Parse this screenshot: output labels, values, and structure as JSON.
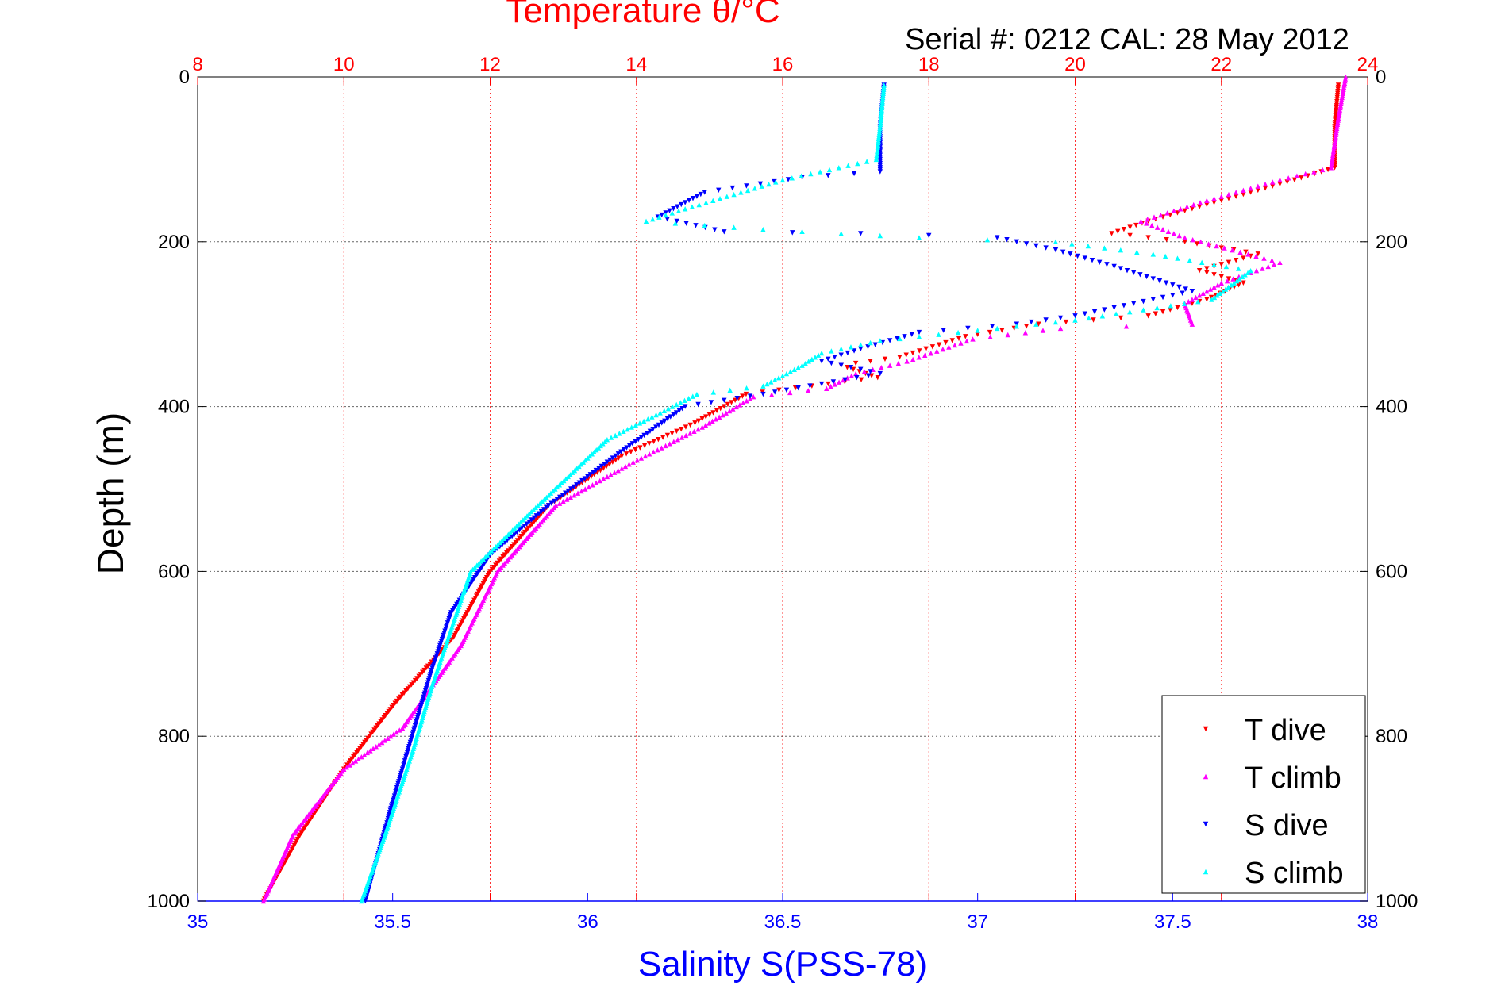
{
  "chart_data": {
    "type": "scatter",
    "title": "Temperature θ/°C",
    "subtitle": "Serial #: 0212  CAL: 28 May 2012",
    "ylabel": "Depth (m)",
    "xlabel_bottom": "Salinity S(PSS-78)",
    "ylim": [
      0,
      1000
    ],
    "y_reversed": true,
    "y_ticks": [
      "0",
      "200",
      "400",
      "600",
      "800",
      "1000"
    ],
    "temperature_axis": {
      "range": [
        8,
        24
      ],
      "ticks": [
        "8",
        "10",
        "12",
        "14",
        "16",
        "18",
        "20",
        "22",
        "24"
      ],
      "color": "#ff0000"
    },
    "salinity_axis": {
      "range": [
        35,
        38
      ],
      "ticks": [
        "35",
        "35.5",
        "36",
        "36.5",
        "37",
        "37.5",
        "38"
      ],
      "color": "#0000ff"
    },
    "grid": true,
    "legend_position": "bottom-right",
    "series": [
      {
        "name": "T dive",
        "axis": "temperature",
        "marker": "down-triangle",
        "color": "#ff0000",
        "points": [
          [
            23.6,
            10
          ],
          [
            23.55,
            60
          ],
          [
            23.55,
            110
          ],
          [
            23.0,
            125
          ],
          [
            22.0,
            150
          ],
          [
            21.0,
            175
          ],
          [
            20.5,
            190
          ],
          [
            21.5,
            200
          ],
          [
            22.5,
            215
          ],
          [
            21.7,
            235
          ],
          [
            22.3,
            250
          ],
          [
            21.8,
            270
          ],
          [
            21.0,
            290
          ],
          [
            19.5,
            300
          ],
          [
            18.5,
            315
          ],
          [
            17.6,
            340
          ],
          [
            16.8,
            350
          ],
          [
            17.3,
            365
          ],
          [
            15.5,
            385
          ],
          [
            14.8,
            420
          ],
          [
            13.8,
            460
          ],
          [
            12.8,
            520
          ],
          [
            12.0,
            600
          ],
          [
            11.5,
            680
          ],
          [
            10.7,
            760
          ],
          [
            10.0,
            840
          ],
          [
            9.4,
            920
          ],
          [
            8.9,
            1000
          ]
        ]
      },
      {
        "name": "T climb",
        "axis": "temperature",
        "marker": "up-triangle",
        "color": "#ff00ff",
        "points": [
          [
            23.7,
            0
          ],
          [
            23.6,
            50
          ],
          [
            23.5,
            110
          ],
          [
            22.8,
            125
          ],
          [
            21.8,
            150
          ],
          [
            20.9,
            175
          ],
          [
            21.5,
            195
          ],
          [
            22.8,
            225
          ],
          [
            22.0,
            250
          ],
          [
            21.5,
            275
          ],
          [
            21.6,
            300
          ],
          [
            19.8,
            305
          ],
          [
            18.6,
            318
          ],
          [
            17.7,
            345
          ],
          [
            17.0,
            360
          ],
          [
            16.6,
            378
          ],
          [
            15.6,
            388
          ],
          [
            14.9,
            425
          ],
          [
            13.9,
            470
          ],
          [
            12.9,
            520
          ],
          [
            12.1,
            600
          ],
          [
            11.6,
            690
          ],
          [
            10.8,
            790
          ],
          [
            10.0,
            840
          ],
          [
            9.3,
            920
          ],
          [
            8.9,
            1000
          ]
        ]
      },
      {
        "name": "S dive",
        "axis": "salinity",
        "marker": "down-triangle",
        "color": "#0000ff",
        "points": [
          [
            36.76,
            10
          ],
          [
            36.75,
            60
          ],
          [
            36.75,
            115
          ],
          [
            36.55,
            122
          ],
          [
            36.3,
            140
          ],
          [
            36.18,
            170
          ],
          [
            36.35,
            188
          ],
          [
            36.7,
            190
          ],
          [
            37.05,
            195
          ],
          [
            37.2,
            210
          ],
          [
            37.35,
            230
          ],
          [
            37.55,
            260
          ],
          [
            37.25,
            290
          ],
          [
            37.1,
            300
          ],
          [
            36.85,
            310
          ],
          [
            36.7,
            330
          ],
          [
            36.6,
            345
          ],
          [
            36.75,
            360
          ],
          [
            36.45,
            385
          ],
          [
            36.25,
            400
          ],
          [
            36.1,
            450
          ],
          [
            35.9,
            520
          ],
          [
            35.75,
            580
          ],
          [
            35.65,
            650
          ],
          [
            35.6,
            720
          ],
          [
            35.55,
            800
          ],
          [
            35.5,
            880
          ],
          [
            35.43,
            1000
          ]
        ]
      },
      {
        "name": "S climb",
        "axis": "salinity",
        "marker": "up-triangle",
        "color": "#00ffff",
        "points": [
          [
            36.76,
            10
          ],
          [
            36.75,
            60
          ],
          [
            36.74,
            100
          ],
          [
            36.5,
            125
          ],
          [
            36.25,
            160
          ],
          [
            36.15,
            175
          ],
          [
            36.45,
            185
          ],
          [
            36.85,
            195
          ],
          [
            37.2,
            200
          ],
          [
            37.45,
            215
          ],
          [
            37.7,
            235
          ],
          [
            37.6,
            270
          ],
          [
            37.25,
            295
          ],
          [
            37.05,
            305
          ],
          [
            36.75,
            320
          ],
          [
            36.6,
            335
          ],
          [
            36.55,
            350
          ],
          [
            36.45,
            375
          ],
          [
            36.28,
            385
          ],
          [
            36.05,
            440
          ],
          [
            35.85,
            530
          ],
          [
            35.7,
            600
          ],
          [
            35.65,
            670
          ],
          [
            35.6,
            740
          ],
          [
            35.55,
            820
          ],
          [
            35.48,
            920
          ],
          [
            35.42,
            1000
          ]
        ]
      }
    ]
  }
}
